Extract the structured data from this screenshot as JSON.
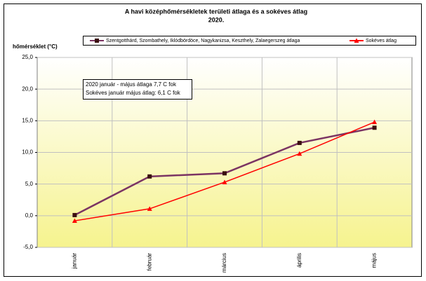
{
  "chart_data": {
    "type": "line",
    "title": "A havi középhőmérsékletek területi átlaga és a sokéves átlag",
    "subtitle": "2020.",
    "y_label": "hőmérséklet (°C)",
    "annotations": [
      "2020 január - május átlaga  7,7 C fok",
      "Sokéves január május  átlag:  6,1 C fok"
    ],
    "categories": [
      "január",
      "február",
      "március",
      "április",
      "május"
    ],
    "series": [
      {
        "name": "Szentgotthárd, Szombathely, Iklódbördöce, Nagykanizsa, Keszthely, Zalaegerszeg átlaga",
        "color": "#7b3463",
        "marker_color": "#3a0f0f",
        "marker": "square",
        "values": [
          0.1,
          6.2,
          6.7,
          11.5,
          13.9
        ]
      },
      {
        "name": "Sokéves átlag",
        "color": "#ff0000",
        "marker_color": "#ff0000",
        "marker": "triangle",
        "values": [
          -0.8,
          1.1,
          5.3,
          9.8,
          14.8
        ]
      }
    ],
    "ylim": [
      -5,
      25
    ],
    "yticks": [
      {
        "value": -5,
        "label": "-5,0"
      },
      {
        "value": 0,
        "label": "0,0"
      },
      {
        "value": 5,
        "label": "5,0"
      },
      {
        "value": 10,
        "label": "10,0"
      },
      {
        "value": 15,
        "label": "15,0"
      },
      {
        "value": 20,
        "label": "20,0"
      },
      {
        "value": 25,
        "label": "25,0"
      }
    ],
    "grid": true,
    "legend": "top"
  }
}
